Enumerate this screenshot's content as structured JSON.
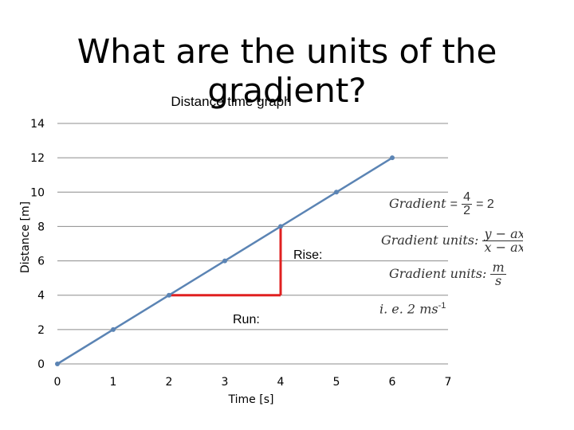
{
  "slide": {
    "title": "What are the units of the gradient?"
  },
  "chart_data": {
    "type": "line",
    "title": "Distance time graph",
    "xlabel": "Time [s]",
    "ylabel": "Distance [m]",
    "xlim": [
      0,
      7
    ],
    "ylim": [
      0,
      14
    ],
    "xticks": [
      "0",
      "1",
      "2",
      "3",
      "4",
      "5",
      "6",
      "7"
    ],
    "yticks": [
      "0",
      "2",
      "4",
      "6",
      "8",
      "10",
      "12",
      "14"
    ],
    "grid": true,
    "line_color": "#5b84b4",
    "annotation_color": "#e02020",
    "series": [
      {
        "x": [
          0,
          1,
          2,
          3,
          4,
          5,
          6
        ],
        "y": [
          0,
          2,
          4,
          6,
          8,
          10,
          12
        ]
      }
    ],
    "annotations": {
      "rise_label": "Rise:",
      "run_label": "Run:"
    }
  },
  "equations": {
    "gradient_word": "Gradient",
    "equals": "=",
    "frac_num": "4",
    "frac_den": "2",
    "result": "= 2",
    "units_label": "Gradient units:",
    "units_num_1": "y − ax",
    "units_den_1": "x − ax",
    "units_num_2": "m",
    "units_den_2": "s",
    "ie_text": "i. e. 2 ms",
    "ie_exp": "-1"
  }
}
